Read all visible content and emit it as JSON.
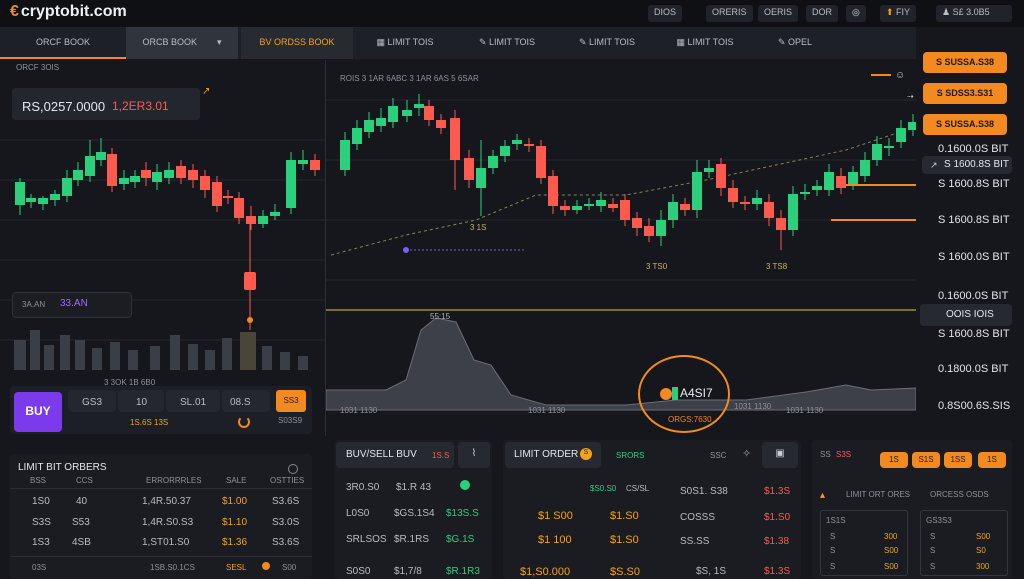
{
  "app": {
    "logo_text": "cryptobit.com"
  },
  "topnav": {
    "items": [
      "DIOS",
      "ORERIS",
      "OERIS",
      "DOR"
    ],
    "user_label": "FIY",
    "balance": "S£ 3.0B5"
  },
  "tabs": [
    {
      "label": "ORCF BOOK"
    },
    {
      "label": "ORCB BOOK"
    },
    {
      "label": "BV  ORDSS BOOK"
    },
    {
      "label": "LIMIT TOIS"
    },
    {
      "label": "LIMIT TOIS"
    },
    {
      "label": "LIMIT TOIS"
    },
    {
      "label": "LIMIT TOIS"
    },
    {
      "label": "OPEL"
    }
  ],
  "left_chart": {
    "small_label": "ORCF 3OIS",
    "price": "RS,0257.0000",
    "change": "1,2ER3.01",
    "mid_box_label": "3A.AN",
    "mid_box_value": "33.AN",
    "time_labels": "3 3OK 1B 6B0"
  },
  "main_chart": {
    "top_labels": "ROIS 3 1AR 6ABC 3 1AR 6AS 5 6SAR",
    "annot_1": "3 1S",
    "annot_2": "55:15",
    "annot_3": "3 TS0",
    "annot_4": "3 TS8",
    "volume_time_labels": [
      "1031 1130",
      "1031 1130",
      "1031 1130",
      "1031 1130"
    ],
    "badge_label": "A4SI7",
    "badge_sub": "ORGS:7630"
  },
  "right_prices": {
    "buttons": [
      "S SUSSA.S38",
      "S SDSS3.S31",
      "S SUSSA.S38"
    ],
    "levels": [
      "0.1600.0S BIT",
      "S 1600.8S BIT",
      "S 1600.8S BIT",
      "S 1600.0S BIT",
      "0.1600.0S BIT",
      "S 1600.8S BIT",
      "0.1800.0S BIT",
      "S 1600.8S BIT",
      "0.8S00.6S.SIS"
    ],
    "small_arrow_label": "S 1600.8S BIT",
    "box_label": "OOIS IOIS"
  },
  "buy_bar": {
    "buy_label": "BUY",
    "fields": [
      "GS3",
      "10",
      "SL.01",
      "08.S"
    ],
    "sub_label": "1S.6S 13S",
    "sell_label": "SS3",
    "sell_sub": "S03S9"
  },
  "limit_orders": {
    "title": "LIMIT BIT ORBERS",
    "headers": [
      "BSS",
      "CCS",
      "ERRORRRLES",
      "SALE",
      "OSTTIES"
    ],
    "rows": [
      [
        "1S0",
        "40",
        "1,4R.50.37",
        "$1.00",
        "S3.6S"
      ],
      [
        "S3S",
        "S53",
        "1,4R.S0.S3",
        "$1.10",
        "S3.0S"
      ],
      [
        "1S3",
        "4SB",
        "1,ST01.S0",
        "$1.36",
        "S3.6S"
      ]
    ],
    "footer": [
      "03S",
      "1SB.S0.1CS",
      "SESL",
      "S00"
    ]
  },
  "buy_sell": {
    "title": "BUV/SELL BUV",
    "badge": "1S.S",
    "rows": [
      [
        "3R0.S0",
        "$1.R 43"
      ],
      [
        "L0S0",
        "$GS.1S4",
        "$13S.S"
      ],
      [
        "SRLSOS",
        "$R.1RS",
        "$G.1S"
      ],
      [
        "S0S0",
        "$1,7/8",
        "$R.1R3"
      ]
    ]
  },
  "limit_order": {
    "title": "LIMIT ORDER",
    "badge": "S",
    "tab_1": "SRORS",
    "tab_2": "SSC",
    "rows": [
      [
        "$S0.S0",
        "CS/SL",
        "S0S1. S38",
        "$1.3S"
      ],
      [
        "$1 S00",
        "$1.S0",
        "COSSS",
        "$1.S0"
      ],
      [
        "$1 100",
        "$1.S0",
        "SS.SS",
        "$1.38"
      ],
      [
        "$1,S0.000",
        "$S.S0",
        "$S, 1S",
        "$1.3S"
      ]
    ]
  },
  "orders_panel": {
    "title": "LIMIT ORT ORES",
    "title2": "ORCESS OSDS",
    "head": [
      "SS",
      "S3S",
      "1S",
      "S1S",
      "1SS",
      "1S"
    ],
    "box1_label": "1S1S",
    "box1_rows": [
      [
        "S",
        "300"
      ],
      [
        "S",
        "S00"
      ],
      [
        "S",
        "S00"
      ]
    ],
    "box2_label": "GS3S3",
    "box2_rows": [
      [
        "S",
        "S00"
      ],
      [
        "S",
        "S0"
      ],
      [
        "S",
        "300"
      ]
    ]
  },
  "colors": {
    "accent": "#f28a1f",
    "buy": "#7c3aed",
    "up": "#2bd07d",
    "down": "#ff5a4d"
  }
}
